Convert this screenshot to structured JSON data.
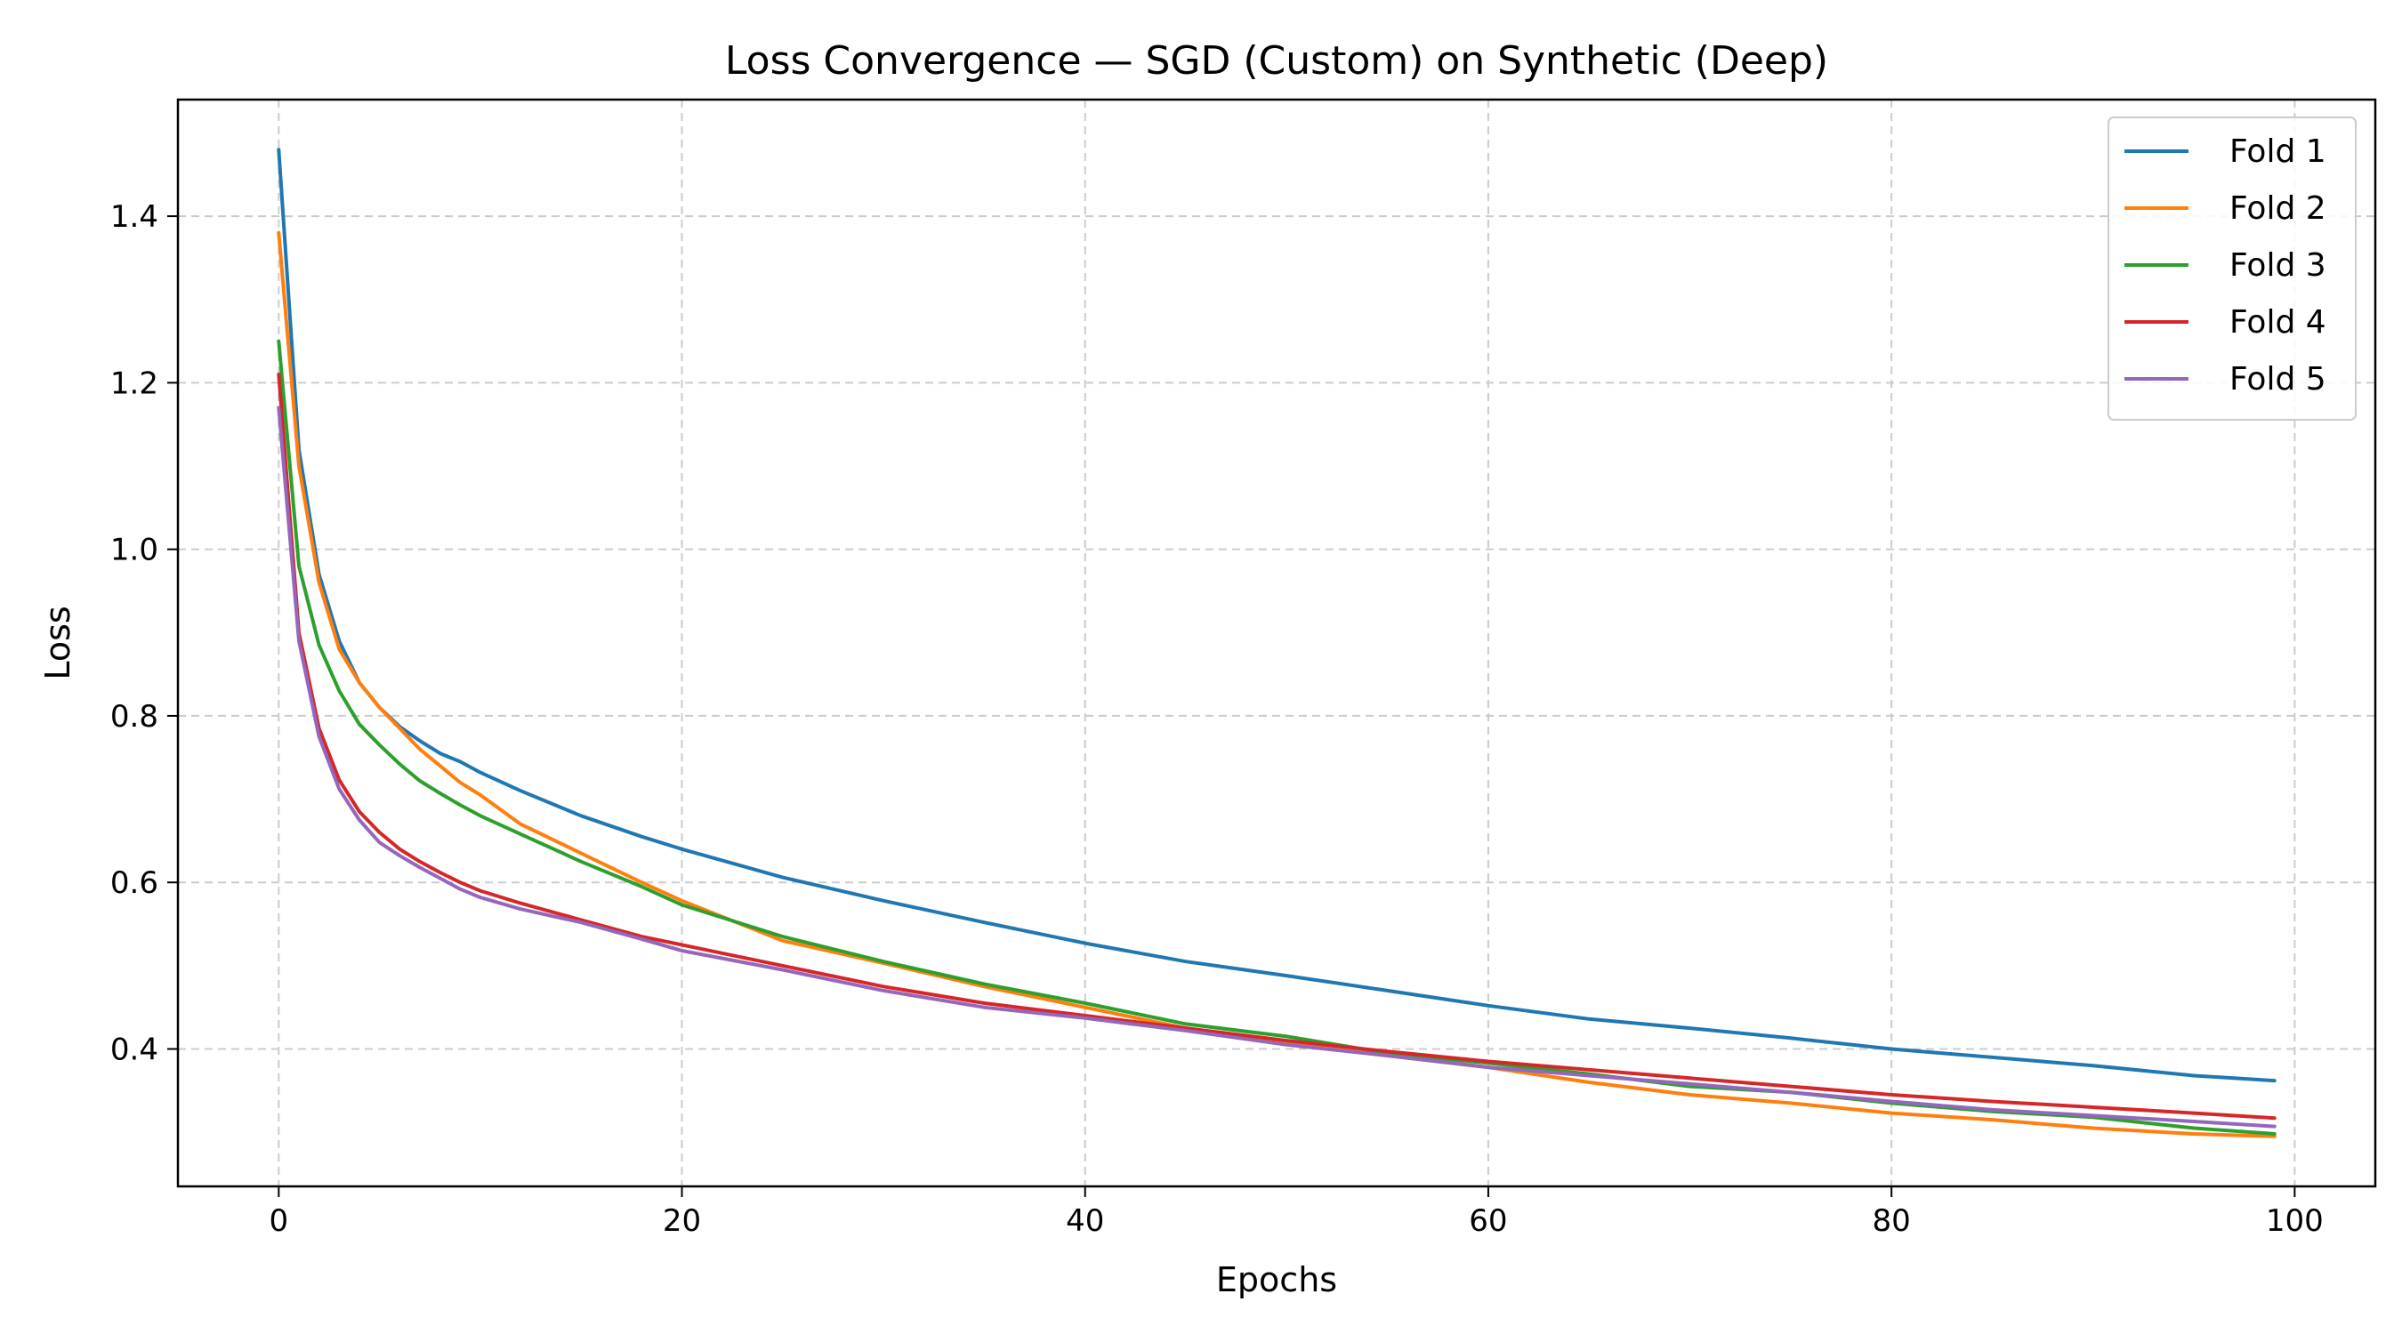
{
  "chart_data": {
    "type": "line",
    "title": "Loss Convergence — SGD (Custom) on Synthetic (Deep)",
    "xlabel": "Epochs",
    "ylabel": "Loss",
    "xlim": [
      -5,
      104
    ],
    "ylim": [
      0.235,
      1.54
    ],
    "xticks": [
      0,
      20,
      40,
      60,
      80,
      100
    ],
    "yticks": [
      0.4,
      0.6,
      0.8,
      1.0,
      1.2,
      1.4
    ],
    "xtick_labels": [
      "0",
      "20",
      "40",
      "60",
      "80",
      "100"
    ],
    "ytick_labels": [
      "0.4",
      "0.6",
      "0.8",
      "1.0",
      "1.2",
      "1.4"
    ],
    "grid": true,
    "legend_position": "top-right",
    "series": [
      {
        "name": "Fold 1",
        "color": "#1f77b4",
        "points": [
          [
            0,
            1.48
          ],
          [
            1,
            1.12
          ],
          [
            2,
            0.97
          ],
          [
            3,
            0.89
          ],
          [
            4,
            0.84
          ],
          [
            5,
            0.81
          ],
          [
            6,
            0.787
          ],
          [
            7,
            0.77
          ],
          [
            8,
            0.755
          ],
          [
            9,
            0.745
          ],
          [
            10,
            0.732
          ],
          [
            12,
            0.71
          ],
          [
            15,
            0.68
          ],
          [
            18,
            0.655
          ],
          [
            20,
            0.64
          ],
          [
            25,
            0.606
          ],
          [
            30,
            0.578
          ],
          [
            35,
            0.552
          ],
          [
            40,
            0.527
          ],
          [
            45,
            0.505
          ],
          [
            50,
            0.488
          ],
          [
            55,
            0.47
          ],
          [
            60,
            0.452
          ],
          [
            65,
            0.436
          ],
          [
            70,
            0.425
          ],
          [
            75,
            0.413
          ],
          [
            80,
            0.4
          ],
          [
            85,
            0.39
          ],
          [
            90,
            0.38
          ],
          [
            95,
            0.368
          ],
          [
            99,
            0.362
          ]
        ]
      },
      {
        "name": "Fold 2",
        "color": "#ff7f0e",
        "points": [
          [
            0,
            1.38
          ],
          [
            1,
            1.1
          ],
          [
            2,
            0.96
          ],
          [
            3,
            0.88
          ],
          [
            4,
            0.84
          ],
          [
            5,
            0.81
          ],
          [
            6,
            0.785
          ],
          [
            7,
            0.76
          ],
          [
            8,
            0.74
          ],
          [
            9,
            0.72
          ],
          [
            10,
            0.705
          ],
          [
            12,
            0.67
          ],
          [
            15,
            0.635
          ],
          [
            18,
            0.6
          ],
          [
            20,
            0.578
          ],
          [
            25,
            0.53
          ],
          [
            30,
            0.503
          ],
          [
            35,
            0.475
          ],
          [
            40,
            0.45
          ],
          [
            45,
            0.425
          ],
          [
            50,
            0.407
          ],
          [
            55,
            0.392
          ],
          [
            60,
            0.378
          ],
          [
            65,
            0.36
          ],
          [
            70,
            0.345
          ],
          [
            75,
            0.335
          ],
          [
            80,
            0.323
          ],
          [
            85,
            0.315
          ],
          [
            90,
            0.305
          ],
          [
            95,
            0.298
          ],
          [
            99,
            0.295
          ]
        ]
      },
      {
        "name": "Fold 3",
        "color": "#2ca02c",
        "points": [
          [
            0,
            1.25
          ],
          [
            1,
            0.98
          ],
          [
            2,
            0.885
          ],
          [
            3,
            0.83
          ],
          [
            4,
            0.79
          ],
          [
            5,
            0.765
          ],
          [
            6,
            0.742
          ],
          [
            7,
            0.722
          ],
          [
            8,
            0.707
          ],
          [
            9,
            0.693
          ],
          [
            10,
            0.68
          ],
          [
            12,
            0.658
          ],
          [
            15,
            0.625
          ],
          [
            18,
            0.595
          ],
          [
            20,
            0.573
          ],
          [
            25,
            0.535
          ],
          [
            30,
            0.505
          ],
          [
            35,
            0.478
          ],
          [
            40,
            0.455
          ],
          [
            45,
            0.43
          ],
          [
            50,
            0.415
          ],
          [
            55,
            0.395
          ],
          [
            60,
            0.383
          ],
          [
            65,
            0.37
          ],
          [
            70,
            0.355
          ],
          [
            75,
            0.348
          ],
          [
            80,
            0.335
          ],
          [
            85,
            0.325
          ],
          [
            90,
            0.318
          ],
          [
            95,
            0.305
          ],
          [
            99,
            0.298
          ]
        ]
      },
      {
        "name": "Fold 4",
        "color": "#d62728",
        "points": [
          [
            0,
            1.21
          ],
          [
            1,
            0.9
          ],
          [
            2,
            0.785
          ],
          [
            3,
            0.723
          ],
          [
            4,
            0.685
          ],
          [
            5,
            0.66
          ],
          [
            6,
            0.64
          ],
          [
            7,
            0.625
          ],
          [
            8,
            0.612
          ],
          [
            9,
            0.6
          ],
          [
            10,
            0.59
          ],
          [
            12,
            0.575
          ],
          [
            15,
            0.555
          ],
          [
            18,
            0.535
          ],
          [
            20,
            0.525
          ],
          [
            25,
            0.5
          ],
          [
            30,
            0.475
          ],
          [
            35,
            0.455
          ],
          [
            40,
            0.44
          ],
          [
            45,
            0.425
          ],
          [
            50,
            0.41
          ],
          [
            55,
            0.397
          ],
          [
            60,
            0.385
          ],
          [
            65,
            0.375
          ],
          [
            70,
            0.365
          ],
          [
            75,
            0.355
          ],
          [
            80,
            0.345
          ],
          [
            85,
            0.337
          ],
          [
            90,
            0.33
          ],
          [
            95,
            0.323
          ],
          [
            99,
            0.317
          ]
        ]
      },
      {
        "name": "Fold 5",
        "color": "#9467bd",
        "points": [
          [
            0,
            1.17
          ],
          [
            1,
            0.89
          ],
          [
            2,
            0.775
          ],
          [
            3,
            0.712
          ],
          [
            4,
            0.675
          ],
          [
            5,
            0.648
          ],
          [
            6,
            0.632
          ],
          [
            7,
            0.618
          ],
          [
            8,
            0.605
          ],
          [
            9,
            0.592
          ],
          [
            10,
            0.582
          ],
          [
            12,
            0.568
          ],
          [
            15,
            0.552
          ],
          [
            18,
            0.532
          ],
          [
            20,
            0.518
          ],
          [
            25,
            0.495
          ],
          [
            30,
            0.47
          ],
          [
            35,
            0.45
          ],
          [
            40,
            0.437
          ],
          [
            45,
            0.422
          ],
          [
            50,
            0.405
          ],
          [
            55,
            0.392
          ],
          [
            60,
            0.378
          ],
          [
            65,
            0.368
          ],
          [
            70,
            0.358
          ],
          [
            75,
            0.348
          ],
          [
            80,
            0.337
          ],
          [
            85,
            0.327
          ],
          [
            90,
            0.32
          ],
          [
            95,
            0.313
          ],
          [
            99,
            0.307
          ]
        ]
      }
    ]
  }
}
